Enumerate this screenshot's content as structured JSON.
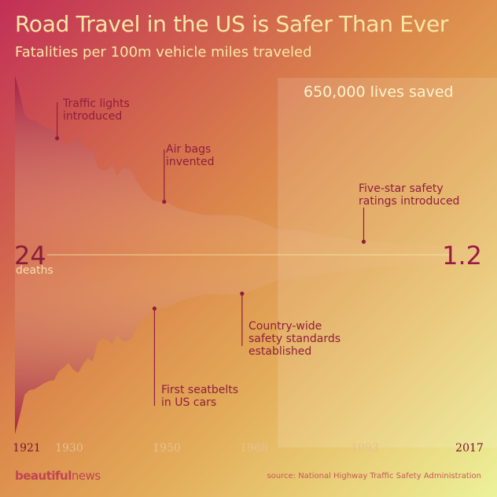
{
  "header": {
    "title": "Road Travel in the US is Safer Than Ever",
    "subtitle": "Fatalities per 100m vehicle miles traveled"
  },
  "lives_saved": "650,000 lives saved",
  "start": {
    "value": "24",
    "unit": "deaths"
  },
  "end": {
    "value": "1.2"
  },
  "footer": {
    "brand_bold": "beautiful",
    "brand_normal": "news",
    "source": "source: National Highway Traffic Safety Administration"
  },
  "colors": {
    "area_top": "#a11f45",
    "area_light": "#f3c896",
    "annotation": "#8f1e3c",
    "tick_highlight": "#7a1630",
    "tick_muted": "#e7c08f"
  },
  "chart_data": {
    "type": "area",
    "title": "Road Travel in the US is Safer Than Ever",
    "subtitle": "Fatalities per 100m vehicle miles traveled",
    "x": [
      1921,
      1922,
      1923,
      1924,
      1925,
      1926,
      1927,
      1928,
      1929,
      1930,
      1931,
      1932,
      1933,
      1934,
      1935,
      1936,
      1937,
      1938,
      1939,
      1940,
      1941,
      1942,
      1943,
      1944,
      1945,
      1946,
      1947,
      1948,
      1949,
      1950,
      1952,
      1955,
      1958,
      1960,
      1962,
      1965,
      1968,
      1970,
      1972,
      1975,
      1978,
      1980,
      1985,
      1990,
      1993,
      1995,
      2000,
      2005,
      2010,
      2015,
      2017
    ],
    "y": [
      24,
      21.5,
      18.7,
      18.1,
      18,
      17.6,
      17.2,
      16.9,
      16.8,
      15.6,
      15.1,
      14.5,
      15.4,
      15.8,
      14.7,
      13.8,
      14.3,
      11.7,
      11.2,
      11.4,
      12,
      10.6,
      11.5,
      11.6,
      11.2,
      9.8,
      8.8,
      8.1,
      7.5,
      7.2,
      7.1,
      6.1,
      5.6,
      5.3,
      5.3,
      5.3,
      5.2,
      4.7,
      4.3,
      3.4,
      3.3,
      3.3,
      2.5,
      2.1,
      1.75,
      1.7,
      1.5,
      1.45,
      1.1,
      1.1,
      1.2
    ],
    "ticks": [
      {
        "year": 1921,
        "label": "1921",
        "highlight": true
      },
      {
        "year": 1930,
        "label": "1930",
        "highlight": false
      },
      {
        "year": 1950,
        "label": "1950",
        "highlight": false
      },
      {
        "year": 1968,
        "label": "1968",
        "highlight": false
      },
      {
        "year": 1993,
        "label": "1993",
        "highlight": false
      },
      {
        "year": 2017,
        "label": "2017",
        "highlight": true
      }
    ],
    "annotations": [
      {
        "id": "traffic-lights",
        "year": 1930,
        "side": "top",
        "lines": [
          "Traffic lights",
          "introduced"
        ]
      },
      {
        "id": "air-bags",
        "year": 1952,
        "side": "top",
        "lines": [
          "Air bags",
          "invented"
        ]
      },
      {
        "id": "five-star",
        "year": 1993,
        "side": "top",
        "lines": [
          "Five-star safety",
          "ratings introduced"
        ]
      },
      {
        "id": "seatbelts",
        "year": 1950,
        "side": "bottom",
        "lines": [
          "First seatbelts",
          "in US cars"
        ]
      },
      {
        "id": "safety-standards",
        "year": 1968,
        "side": "bottom",
        "lines": [
          "Country-wide",
          "safety standards",
          "established"
        ]
      }
    ],
    "highlight_range": [
      1975,
      2017
    ],
    "xlim": [
      1921,
      2017
    ],
    "ylim": [
      0,
      24
    ]
  }
}
